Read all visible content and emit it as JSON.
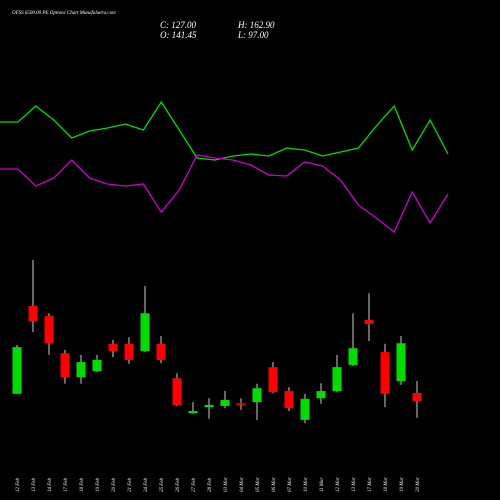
{
  "chart_data": {
    "type": "candlestick",
    "title": "OFSS 6500.00 PE Options  Chart MunafaSutra.com",
    "ohlc_labels": [
      "C: 127.00",
      "H: 162.90",
      "O: 141.45",
      "L: 97.00"
    ],
    "categories": [
      "12 Feb",
      "13 Feb",
      "14 Feb",
      "17 Feb",
      "18 Feb",
      "19 Feb",
      "20 Feb",
      "21 Feb",
      "24 Feb",
      "25 Feb",
      "26 Feb",
      "27 Feb",
      "28 Feb",
      "03 Mar",
      "04 Mar",
      "05 Mar",
      "06 Mar",
      "07 Mar",
      "10 Mar",
      "11 Mar",
      "12 Mar",
      "13 Mar",
      "17 Mar",
      "18 Mar",
      "19 Mar",
      "20 Mar"
    ],
    "open": [
      140,
      298,
      280,
      213,
      170,
      181,
      230,
      230,
      217,
      230,
      168,
      105,
      116,
      118,
      123,
      125,
      188,
      145,
      93,
      132,
      145,
      192,
      273,
      215,
      163,
      141.45
    ],
    "high": [
      228,
      381,
      285,
      219,
      210,
      210,
      237,
      242,
      334,
      244,
      177,
      125,
      132,
      145,
      132,
      158,
      197,
      152,
      140,
      159,
      210,
      285,
      321,
      230,
      244,
      162.9
    ],
    "low": [
      140,
      251,
      210,
      158,
      158,
      179,
      206,
      194,
      215,
      195,
      118,
      104,
      95,
      114,
      111,
      93,
      141,
      109,
      87,
      122,
      143,
      190,
      235,
      116,
      156,
      97.0
    ],
    "close": [
      224,
      271,
      231,
      170,
      197,
      201,
      217,
      201,
      285,
      201,
      120,
      109,
      120,
      129,
      120,
      150,
      143,
      114,
      131,
      145,
      188,
      222,
      266,
      140,
      231,
      127.0
    ],
    "up_color": "#00dd00",
    "down_color": "#ff0000",
    "lines": [
      {
        "color": "#00dd00",
        "values": [
          128,
          128,
          144,
          130,
          112,
          119,
          122,
          126,
          120,
          148,
          120,
          92,
          90,
          94,
          96,
          94,
          102,
          100,
          94,
          98,
          102,
          124,
          144,
          100,
          130,
          96
        ]
      },
      {
        "color": "#cc00cc",
        "values": [
          81,
          81,
          64,
          72,
          90,
          72,
          66,
          64,
          66,
          38,
          60,
          95,
          92,
          90,
          85,
          75,
          74,
          88,
          84,
          70,
          45,
          32,
          18,
          58,
          27,
          56
        ]
      }
    ]
  }
}
